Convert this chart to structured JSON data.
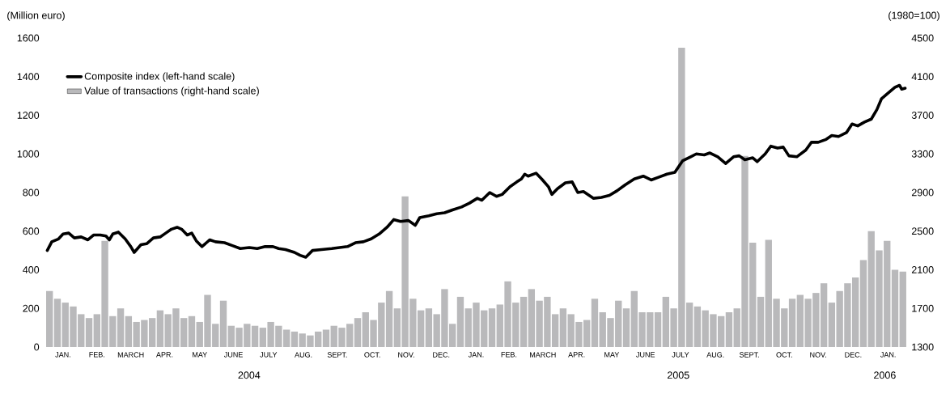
{
  "chart_data": {
    "type": "line",
    "ylabel": "(Million euro)",
    "y2label": "(1980=100)",
    "xlim": [
      "2004-01-01",
      "2006-02-01"
    ],
    "xticks": [
      {
        "value": "2004-01-16",
        "label": "JAN."
      },
      {
        "value": "2004-02-15",
        "label": "FEB."
      },
      {
        "value": "2004-03-16",
        "label": "MARCH"
      },
      {
        "value": "2004-04-15",
        "label": "APR."
      },
      {
        "value": "2004-05-16",
        "label": "MAY"
      },
      {
        "value": "2004-06-15",
        "label": "JUNE"
      },
      {
        "value": "2004-07-16",
        "label": "JULY"
      },
      {
        "value": "2004-08-16",
        "label": "AUG."
      },
      {
        "value": "2004-09-15",
        "label": "SEPT."
      },
      {
        "value": "2004-10-16",
        "label": "OCT."
      },
      {
        "value": "2004-11-15",
        "label": "NOV."
      },
      {
        "value": "2004-12-16",
        "label": "DEC."
      },
      {
        "value": "2005-01-16",
        "label": "JAN."
      },
      {
        "value": "2005-02-14",
        "label": "FEB."
      },
      {
        "value": "2005-03-16",
        "label": "MARCH"
      },
      {
        "value": "2005-04-15",
        "label": "APR."
      },
      {
        "value": "2005-05-16",
        "label": "MAY"
      },
      {
        "value": "2005-06-15",
        "label": "JUNE"
      },
      {
        "value": "2005-07-16",
        "label": "JULY"
      },
      {
        "value": "2005-08-16",
        "label": "AUG."
      },
      {
        "value": "2005-09-15",
        "label": "SEPT."
      },
      {
        "value": "2005-10-16",
        "label": "OCT."
      },
      {
        "value": "2005-11-15",
        "label": "NOV."
      },
      {
        "value": "2005-12-16",
        "label": "DEC."
      },
      {
        "value": "2006-01-16",
        "label": "JAN."
      }
    ],
    "ylim": [
      0,
      1600
    ],
    "yticks": [
      0,
      200,
      400,
      600,
      800,
      1000,
      1200,
      1400,
      1600
    ],
    "y2lim": [
      1300,
      4500
    ],
    "y2ticks": [
      1300,
      1700,
      2100,
      2500,
      2900,
      3300,
      3700,
      4100,
      4500
    ],
    "legend": "top left",
    "annotations": [
      "2004",
      "2005",
      "2006"
    ],
    "series": [
      {
        "name": "Composite index (left-hand scale)",
        "color": "#000000",
        "x": [
          "2004-01-02",
          "2004-01-06",
          "2004-01-12",
          "2004-01-16",
          "2004-01-21",
          "2004-01-26",
          "2004-02-01",
          "2004-02-07",
          "2004-02-12",
          "2004-02-18",
          "2004-02-23",
          "2004-02-26",
          "2004-02-29",
          "2004-03-05",
          "2004-03-11",
          "2004-03-16",
          "2004-03-19",
          "2004-03-25",
          "2004-03-30",
          "2004-04-05",
          "2004-04-11",
          "2004-04-16",
          "2004-04-21",
          "2004-04-26",
          "2004-04-30",
          "2004-05-05",
          "2004-05-09",
          "2004-05-13",
          "2004-05-18",
          "2004-05-25",
          "2004-05-30",
          "2004-06-07",
          "2004-06-14",
          "2004-06-21",
          "2004-06-29",
          "2004-07-06",
          "2004-07-13",
          "2004-07-20",
          "2004-07-25",
          "2004-07-31",
          "2004-08-08",
          "2004-08-13",
          "2004-08-18",
          "2004-08-24",
          "2004-09-01",
          "2004-09-10",
          "2004-09-17",
          "2004-09-24",
          "2004-10-01",
          "2004-10-08",
          "2004-10-15",
          "2004-10-22",
          "2004-10-29",
          "2004-11-04",
          "2004-11-10",
          "2004-11-17",
          "2004-11-23",
          "2004-11-27",
          "2004-12-05",
          "2004-12-12",
          "2004-12-19",
          "2004-12-26",
          "2005-01-03",
          "2005-01-10",
          "2005-01-17",
          "2005-01-21",
          "2005-01-28",
          "2005-02-03",
          "2005-02-08",
          "2005-02-15",
          "2005-02-21",
          "2005-02-25",
          "2005-02-28",
          "2005-03-03",
          "2005-03-10",
          "2005-03-15",
          "2005-03-21",
          "2005-03-24",
          "2005-03-29",
          "2005-04-05",
          "2005-04-11",
          "2005-04-16",
          "2005-04-21",
          "2005-04-30",
          "2005-05-07",
          "2005-05-14",
          "2005-05-21",
          "2005-05-28",
          "2005-06-05",
          "2005-06-13",
          "2005-06-20",
          "2005-06-27",
          "2005-07-04",
          "2005-07-11",
          "2005-07-18",
          "2005-07-25",
          "2005-07-30",
          "2005-08-06",
          "2005-08-11",
          "2005-08-18",
          "2005-08-25",
          "2005-09-01",
          "2005-09-06",
          "2005-09-11",
          "2005-09-18",
          "2005-09-22",
          "2005-09-29",
          "2005-10-04",
          "2005-10-10",
          "2005-10-15",
          "2005-10-20",
          "2005-10-27",
          "2005-11-04",
          "2005-11-09",
          "2005-11-15",
          "2005-11-22",
          "2005-11-27",
          "2005-12-03",
          "2005-12-10",
          "2005-12-15",
          "2005-12-20",
          "2005-12-26",
          "2006-01-01",
          "2006-01-06",
          "2006-01-10",
          "2006-01-15",
          "2006-01-19",
          "2006-01-22",
          "2006-01-26",
          "2006-01-28",
          "2006-01-31"
        ],
        "values": [
          500,
          545,
          560,
          585,
          590,
          565,
          570,
          555,
          580,
          580,
          575,
          555,
          585,
          595,
          560,
          520,
          490,
          530,
          535,
          565,
          570,
          590,
          610,
          620,
          610,
          580,
          590,
          550,
          520,
          555,
          545,
          540,
          525,
          510,
          515,
          510,
          520,
          520,
          510,
          505,
          490,
          475,
          465,
          500,
          505,
          510,
          515,
          520,
          540,
          545,
          560,
          585,
          620,
          660,
          650,
          655,
          630,
          670,
          680,
          690,
          695,
          710,
          725,
          745,
          770,
          760,
          800,
          780,
          790,
          830,
          855,
          870,
          895,
          885,
          900,
          870,
          830,
          790,
          820,
          850,
          855,
          800,
          805,
          770,
          775,
          785,
          810,
          840,
          870,
          885,
          865,
          880,
          895,
          905,
          965,
          985,
          1000,
          995,
          1005,
          985,
          950,
          985,
          990,
          970,
          980,
          960,
          1000,
          1040,
          1030,
          1035,
          990,
          985,
          1020,
          1060,
          1060,
          1075,
          1095,
          1090,
          1110,
          1155,
          1145,
          1165,
          1180,
          1230,
          1285,
          1310,
          1330,
          1345,
          1355,
          1335,
          1340
        ]
      },
      {
        "name": "Value of transactions (right-hand scale)",
        "type": "bar",
        "axis": "y2",
        "color": "#b9b9bb",
        "x": [
          "2004-01-04",
          "2004-01-11",
          "2004-01-18",
          "2004-01-25",
          "2004-02-01",
          "2004-02-08",
          "2004-02-15",
          "2004-02-22",
          "2004-02-29",
          "2004-03-07",
          "2004-03-14",
          "2004-03-21",
          "2004-03-28",
          "2004-04-04",
          "2004-04-11",
          "2004-04-18",
          "2004-04-25",
          "2004-05-02",
          "2004-05-09",
          "2004-05-16",
          "2004-05-23",
          "2004-05-30",
          "2004-06-06",
          "2004-06-13",
          "2004-06-20",
          "2004-06-27",
          "2004-07-04",
          "2004-07-11",
          "2004-07-18",
          "2004-07-25",
          "2004-08-01",
          "2004-08-08",
          "2004-08-15",
          "2004-08-22",
          "2004-08-29",
          "2004-09-05",
          "2004-09-12",
          "2004-09-19",
          "2004-09-26",
          "2004-10-03",
          "2004-10-10",
          "2004-10-17",
          "2004-10-24",
          "2004-10-31",
          "2004-11-07",
          "2004-11-14",
          "2004-11-21",
          "2004-11-28",
          "2004-12-05",
          "2004-12-12",
          "2004-12-19",
          "2004-12-26",
          "2005-01-02",
          "2005-01-09",
          "2005-01-16",
          "2005-01-23",
          "2005-01-30",
          "2005-02-06",
          "2005-02-13",
          "2005-02-20",
          "2005-02-27",
          "2005-03-06",
          "2005-03-13",
          "2005-03-20",
          "2005-03-27",
          "2005-04-03",
          "2005-04-10",
          "2005-04-17",
          "2005-04-24",
          "2005-05-01",
          "2005-05-08",
          "2005-05-15",
          "2005-05-22",
          "2005-05-29",
          "2005-06-05",
          "2005-06-12",
          "2005-06-19",
          "2005-06-26",
          "2005-07-03",
          "2005-07-10",
          "2005-07-17",
          "2005-07-24",
          "2005-07-31",
          "2005-08-07",
          "2005-08-14",
          "2005-08-21",
          "2005-08-28",
          "2005-09-04",
          "2005-09-11",
          "2005-09-18",
          "2005-09-25",
          "2005-10-02",
          "2005-10-09",
          "2005-10-16",
          "2005-10-23",
          "2005-10-30",
          "2005-11-06",
          "2005-11-13",
          "2005-11-20",
          "2005-11-27",
          "2005-12-04",
          "2005-12-11",
          "2005-12-18",
          "2005-12-25",
          "2006-01-01",
          "2006-01-08",
          "2006-01-15",
          "2006-01-22",
          "2006-01-29"
        ],
        "values": [
          1880,
          1800,
          1760,
          1720,
          1640,
          1600,
          1640,
          2400,
          1620,
          1700,
          1620,
          1560,
          1580,
          1600,
          1680,
          1640,
          1700,
          1600,
          1620,
          1560,
          1840,
          1540,
          1780,
          1520,
          1500,
          1540,
          1520,
          1500,
          1560,
          1520,
          1480,
          1460,
          1440,
          1420,
          1460,
          1480,
          1520,
          1500,
          1540,
          1600,
          1660,
          1580,
          1760,
          1880,
          1700,
          2860,
          1800,
          1680,
          1700,
          1640,
          1900,
          1540,
          1820,
          1700,
          1760,
          1680,
          1700,
          1740,
          1980,
          1760,
          1820,
          1900,
          1780,
          1820,
          1640,
          1700,
          1640,
          1560,
          1580,
          1800,
          1660,
          1600,
          1780,
          1700,
          1880,
          1660,
          1660,
          1660,
          1820,
          1700,
          4400,
          1760,
          1720,
          1680,
          1640,
          1620,
          1660,
          1700,
          3280,
          2380,
          1820,
          2410,
          1800,
          1700,
          1800,
          1840,
          1800,
          1860,
          1960,
          1760,
          1880,
          1960,
          2020,
          2200,
          2500,
          2300,
          2400,
          2100,
          2080
        ]
      }
    ]
  }
}
